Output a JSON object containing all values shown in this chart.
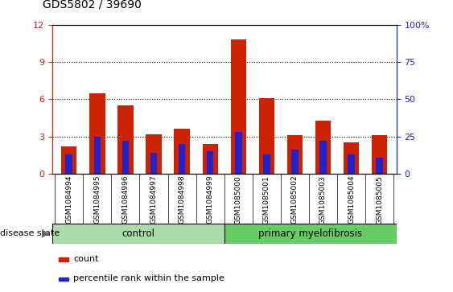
{
  "title": "GDS5802 / 39690",
  "categories": [
    "GSM1084994",
    "GSM1084995",
    "GSM1084996",
    "GSM1084997",
    "GSM1084998",
    "GSM1084999",
    "GSM1085000",
    "GSM1085001",
    "GSM1085002",
    "GSM1085003",
    "GSM1085004",
    "GSM1085005"
  ],
  "count_values": [
    2.2,
    6.5,
    5.5,
    3.2,
    3.6,
    2.4,
    10.8,
    6.1,
    3.1,
    4.3,
    2.5,
    3.1
  ],
  "percentile_values": [
    13,
    25,
    22,
    14,
    20,
    15,
    28,
    13,
    16,
    22,
    13,
    11
  ],
  "bar_color": "#cc2200",
  "percentile_color": "#2222cc",
  "ylim_left": [
    0,
    12
  ],
  "ylim_right": [
    0,
    100
  ],
  "yticks_left": [
    0,
    3,
    6,
    9,
    12
  ],
  "yticks_right": [
    0,
    25,
    50,
    75,
    100
  ],
  "ytick_labels_right": [
    "0",
    "25",
    "50",
    "75",
    "100%"
  ],
  "left_ycolor": "#cc2200",
  "right_ycolor": "#2222cc",
  "control_label": "control",
  "disease_label": "primary myelofibrosis",
  "disease_state_label": "disease state",
  "control_count": 6,
  "disease_count": 6,
  "group_color_control": "#aaddaa",
  "group_color_disease": "#66cc66",
  "xlabel_area_color": "#cccccc",
  "legend_count_label": "count",
  "legend_percentile_label": "percentile rank within the sample",
  "bar_width": 0.55
}
